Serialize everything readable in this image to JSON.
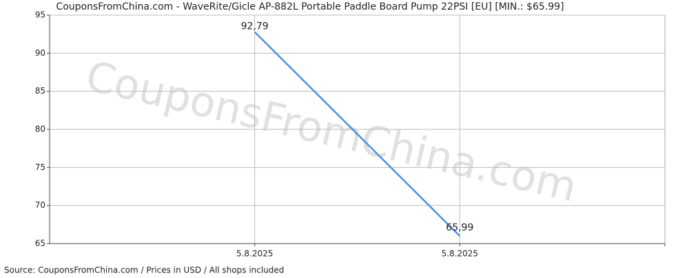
{
  "chart_data": {
    "type": "line",
    "title": "CouponsFromChina.com - WaveRite/Gicle AP-882L Portable Paddle Board Pump 22PSI [EU] [MIN.: $65.99]",
    "watermark": "CouponsFromChina.com",
    "source": "Source: CouponsFromChina.com / Prices in USD / All shops included",
    "categories": [
      "5.8.2025",
      "5.8.2025"
    ],
    "values": [
      92.79,
      65.99
    ],
    "value_labels": [
      "92,79",
      "65,99"
    ],
    "color": "#4a8fe7",
    "ylim": [
      65,
      95
    ],
    "yticks": [
      65,
      70,
      75,
      80,
      85,
      90,
      95
    ],
    "grid": true
  }
}
